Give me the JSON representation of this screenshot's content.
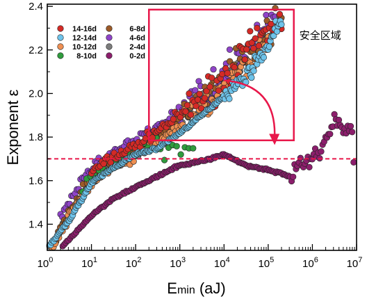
{
  "chart_data": {
    "type": "scatter",
    "xlabel": "Emin (aJ)",
    "xlabel_main": "E",
    "xlabel_sub": "min",
    "xlabel_unit": " (aJ)",
    "ylabel": "Exponent ε",
    "xscale": "log",
    "xlim": [
      1,
      10000000
    ],
    "ylim": [
      1.28,
      2.41
    ],
    "grid": false,
    "legend_position": "top-left",
    "x_ticks": [
      {
        "base": "10",
        "exp": "0",
        "value": 1
      },
      {
        "base": "10",
        "exp": "1",
        "value": 10
      },
      {
        "base": "10",
        "exp": "2",
        "value": 100
      },
      {
        "base": "10",
        "exp": "3",
        "value": 1000
      },
      {
        "base": "10",
        "exp": "4",
        "value": 10000
      },
      {
        "base": "10",
        "exp": "5",
        "value": 100000
      },
      {
        "base": "10",
        "exp": "6",
        "value": 1000000
      },
      {
        "base": "10",
        "exp": "7",
        "value": 10000000
      }
    ],
    "y_ticks": [
      "1.4",
      "1.6",
      "1.8",
      "2.0",
      "2.2",
      "2.4"
    ],
    "reference_line": {
      "y": 1.7,
      "color": "#e8174a",
      "style": "dashed"
    },
    "annotation": {
      "label": "安全区域",
      "box": {
        "x0": 200,
        "x1": 380000,
        "y0": 1.785,
        "y1": 2.385
      },
      "arrow_from": {
        "x": 10000,
        "y": 2.06
      },
      "arrow_to": {
        "x": 140000,
        "y": 1.77
      },
      "color": "#e8174a"
    },
    "series": [
      {
        "name": "14-16d",
        "color": "#d42a26"
      },
      {
        "name": "12-14d",
        "color": "#6ec3ea"
      },
      {
        "name": "10-12d",
        "color": "#ee8f52"
      },
      {
        "name": "8-10d",
        "color": "#2f9c3d"
      },
      {
        "name": "6-8d",
        "color": "#9c5a28"
      },
      {
        "name": "4-6d",
        "color": "#8f44c8"
      },
      {
        "name": "2-4d",
        "color": "#7c7c7c"
      },
      {
        "name": "0-2d",
        "color": "#8c1e6c"
      }
    ],
    "legend_order": [
      0,
      5,
      1,
      6,
      2,
      7,
      3,
      4
    ],
    "legend_layout": [
      {
        "series": 0,
        "col": 0,
        "row": 0
      },
      {
        "series": 4,
        "col": 1,
        "row": 0
      },
      {
        "series": 1,
        "col": 0,
        "row": 1
      },
      {
        "series": 5,
        "col": 1,
        "row": 1
      },
      {
        "series": 2,
        "col": 0,
        "row": 2
      },
      {
        "series": 6,
        "col": 1,
        "row": 2
      },
      {
        "series": 3,
        "col": 0,
        "row": 3
      },
      {
        "series": 7,
        "col": 1,
        "row": 3
      }
    ]
  }
}
